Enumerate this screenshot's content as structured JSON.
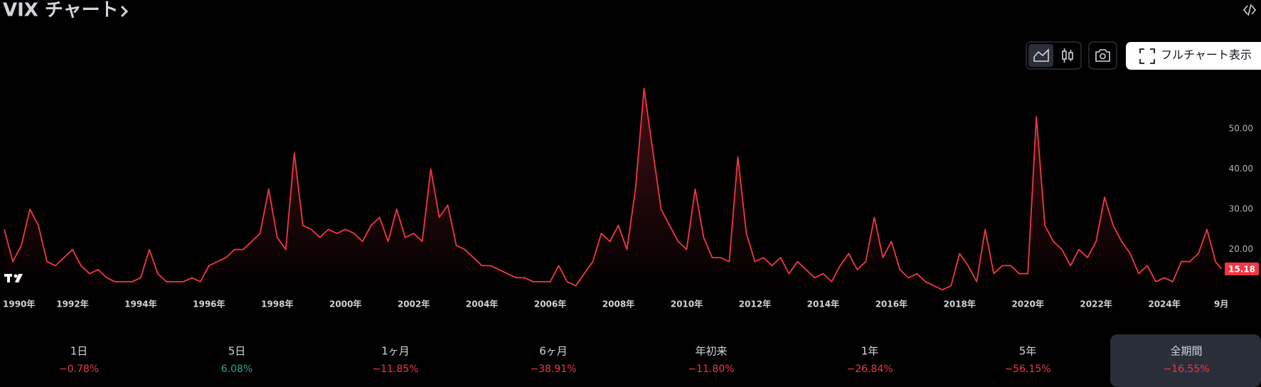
{
  "header": {
    "title": "VIX チャート"
  },
  "toolbar": {
    "full_chart": "フルチャート表示"
  },
  "chart_data": {
    "type": "line",
    "name": "VIX",
    "color": "#f23645",
    "x": [
      1990,
      1990.25,
      1990.5,
      1990.75,
      1991,
      1991.25,
      1991.5,
      1991.75,
      1992,
      1992.25,
      1992.5,
      1992.75,
      1993,
      1993.25,
      1993.5,
      1993.75,
      1994,
      1994.25,
      1994.5,
      1994.75,
      1995,
      1995.25,
      1995.5,
      1995.75,
      1996,
      1996.25,
      1996.5,
      1996.75,
      1997,
      1997.25,
      1997.5,
      1997.75,
      1998,
      1998.25,
      1998.5,
      1998.75,
      1999,
      1999.25,
      1999.5,
      1999.75,
      2000,
      2000.25,
      2000.5,
      2000.75,
      2001,
      2001.25,
      2001.5,
      2001.75,
      2002,
      2002.25,
      2002.5,
      2002.75,
      2003,
      2003.25,
      2003.5,
      2003.75,
      2004,
      2004.25,
      2004.5,
      2004.75,
      2005,
      2005.25,
      2005.5,
      2005.75,
      2006,
      2006.25,
      2006.5,
      2006.75,
      2007,
      2007.25,
      2007.5,
      2007.75,
      2008,
      2008.25,
      2008.5,
      2008.75,
      2009,
      2009.25,
      2009.5,
      2009.75,
      2010,
      2010.25,
      2010.5,
      2010.75,
      2011,
      2011.25,
      2011.5,
      2011.75,
      2012,
      2012.25,
      2012.5,
      2012.75,
      2013,
      2013.25,
      2013.5,
      2013.75,
      2014,
      2014.25,
      2014.5,
      2014.75,
      2015,
      2015.25,
      2015.5,
      2015.75,
      2016,
      2016.25,
      2016.5,
      2016.75,
      2017,
      2017.25,
      2017.5,
      2017.75,
      2018,
      2018.25,
      2018.5,
      2018.75,
      2019,
      2019.25,
      2019.5,
      2019.75,
      2020,
      2020.25,
      2020.5,
      2020.75,
      2021,
      2021.25,
      2021.5,
      2021.75,
      2022,
      2022.25,
      2022.5,
      2022.75,
      2023,
      2023.25,
      2023.5,
      2023.75,
      2024,
      2024.25,
      2024.5,
      2024.75,
      2025,
      2025.25,
      2025.5,
      2025.67
    ],
    "values": [
      25,
      17,
      21,
      30,
      26,
      17,
      16,
      18,
      20,
      16,
      14,
      15,
      13,
      12,
      12,
      12,
      13,
      20,
      14,
      12,
      12,
      12,
      13,
      12,
      16,
      17,
      18,
      20,
      20,
      22,
      24,
      35,
      23,
      20,
      44,
      26,
      25,
      23,
      25,
      24,
      25,
      24,
      22,
      26,
      28,
      22,
      30,
      23,
      24,
      22,
      40,
      28,
      31,
      21,
      20,
      18,
      16,
      16,
      15,
      14,
      13,
      13,
      12,
      12,
      12,
      16,
      12,
      11,
      14,
      17,
      24,
      22,
      26,
      20,
      35,
      60,
      45,
      30,
      26,
      22,
      20,
      35,
      23,
      18,
      18,
      17,
      43,
      24,
      17,
      18,
      16,
      18,
      14,
      17,
      15,
      13,
      14,
      12,
      16,
      19,
      15,
      17,
      28,
      18,
      22,
      15,
      13,
      14,
      12,
      11,
      10,
      11,
      19,
      16,
      12,
      25,
      14,
      16,
      16,
      14,
      14,
      53,
      26,
      22,
      20,
      16,
      20,
      18,
      22,
      33,
      26,
      22,
      19,
      14,
      16,
      12,
      13,
      12,
      17,
      17,
      19,
      25,
      17,
      15.18
    ],
    "last_price": 15.18,
    "xlim": [
      1990,
      2025.75
    ],
    "xticks": [
      {
        "value": 1990,
        "label": "1990年"
      },
      {
        "value": 1992,
        "label": "1992年"
      },
      {
        "value": 1994,
        "label": "1994年"
      },
      {
        "value": 1996,
        "label": "1996年"
      },
      {
        "value": 1998,
        "label": "1998年"
      },
      {
        "value": 2000,
        "label": "2000年"
      },
      {
        "value": 2002,
        "label": "2002年"
      },
      {
        "value": 2004,
        "label": "2004年"
      },
      {
        "value": 2006,
        "label": "2006年"
      },
      {
        "value": 2008,
        "label": "2008年"
      },
      {
        "value": 2010,
        "label": "2010年"
      },
      {
        "value": 2012,
        "label": "2012年"
      },
      {
        "value": 2014,
        "label": "2014年"
      },
      {
        "value": 2016,
        "label": "2016年"
      },
      {
        "value": 2018,
        "label": "2018年"
      },
      {
        "value": 2020,
        "label": "2020年"
      },
      {
        "value": 2022,
        "label": "2022年"
      },
      {
        "value": 2024,
        "label": "2024年"
      },
      {
        "value": 2025.67,
        "label": "9月"
      }
    ],
    "ylim": [
      9,
      62
    ],
    "yticks": [
      {
        "value": 20,
        "label": "20.00"
      },
      {
        "value": 30,
        "label": "30.00"
      },
      {
        "value": 40,
        "label": "40.00"
      },
      {
        "value": 50,
        "label": "50.00"
      }
    ],
    "grid": false
  },
  "periods": [
    {
      "label": "1日",
      "change": "−0.78%",
      "color": "#f23645"
    },
    {
      "label": "5日",
      "change": "6.08%",
      "color": "#22ab94"
    },
    {
      "label": "1ヶ月",
      "change": "−11.85%",
      "color": "#f23645"
    },
    {
      "label": "6ヶ月",
      "change": "−38.91%",
      "color": "#f23645"
    },
    {
      "label": "年初来",
      "change": "−11.80%",
      "color": "#f23645"
    },
    {
      "label": "1年",
      "change": "−26.84%",
      "color": "#f23645"
    },
    {
      "label": "5年",
      "change": "−56.15%",
      "color": "#f23645"
    },
    {
      "label": "全期間",
      "change": "−16.55%",
      "color": "#f23645",
      "selected": true
    }
  ]
}
